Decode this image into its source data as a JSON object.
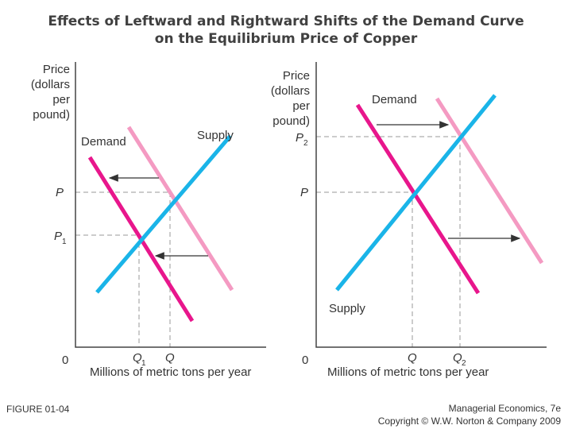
{
  "title": {
    "line1": "Effects of Leftward and Rightward Shifts of the Demand Curve",
    "line2": "on the Equilibrium Price of Copper"
  },
  "colors": {
    "demand_old": "#e8168c",
    "demand_new": "#f49ac2",
    "supply": "#1ab4e8",
    "axis": "#444444",
    "guide": "#999999",
    "arrow": "#333333",
    "text": "#333333"
  },
  "left_panel": {
    "y_axis_label": [
      "Price",
      "(dollars",
      "per",
      "pound)"
    ],
    "x_axis_label": "Millions of metric tons per year",
    "origin": "0",
    "demand_label": "Demand",
    "supply_label": "Supply",
    "price_ticks": {
      "p": "P",
      "p1": "P",
      "p1_sub": "1"
    },
    "quantity_ticks": {
      "q1": "Q",
      "q1_sub": "1",
      "q": "Q"
    }
  },
  "right_panel": {
    "y_axis_label": [
      "Price",
      "(dollars",
      "per",
      "pound)"
    ],
    "x_axis_label": "Millions of metric tons per year",
    "origin": "0",
    "demand_label": "Demand",
    "supply_label": "Supply",
    "price_ticks": {
      "p2": "P",
      "p2_sub": "2",
      "p": "P"
    },
    "quantity_ticks": {
      "q": "Q",
      "q2": "Q",
      "q2_sub": "2"
    }
  },
  "footer": {
    "figure": "FIGURE 01-04",
    "book": "Managerial Economics, 7e",
    "copyright": "Copyright © W.W. Norton & Company 2009"
  }
}
